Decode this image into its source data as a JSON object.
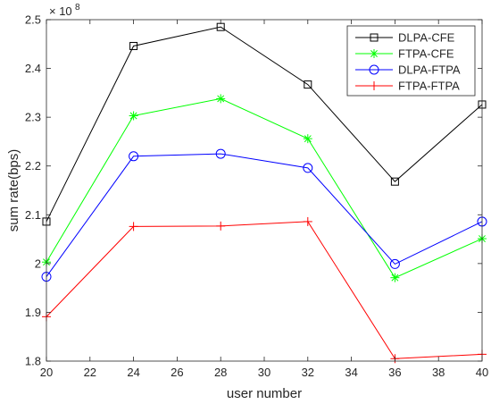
{
  "chart_data": {
    "type": "line",
    "xlabel": "user number",
    "ylabel": "sum rate(bps)",
    "y_multiplier": {
      "base": "× 10",
      "exponent": "8"
    },
    "x": [
      20,
      24,
      28,
      32,
      36,
      40
    ],
    "xlim": [
      20,
      40
    ],
    "ylim": [
      1.8,
      2.5
    ],
    "x_ticks": [
      "20",
      "22",
      "24",
      "26",
      "28",
      "30",
      "32",
      "34",
      "36",
      "38",
      "40"
    ],
    "y_ticks": [
      "1.8",
      "1.9",
      "2",
      "2.1",
      "2.2",
      "2.3",
      "2.4",
      "2.5"
    ],
    "grid": false,
    "legend_position": "top-right",
    "series": [
      {
        "name": "DLPA-CFE",
        "color": "#000000",
        "marker": "square",
        "values": [
          2.086,
          2.446,
          2.485,
          2.367,
          2.168,
          2.326
        ]
      },
      {
        "name": "FTPA-CFE",
        "color": "#00ff00",
        "marker": "asterisk",
        "values": [
          2.003,
          2.303,
          2.338,
          2.256,
          1.971,
          2.051
        ]
      },
      {
        "name": "DLPA-FTPA",
        "color": "#0000ff",
        "marker": "circle",
        "values": [
          1.973,
          2.22,
          2.225,
          2.196,
          1.999,
          2.086
        ]
      },
      {
        "name": "FTPA-FTPA",
        "color": "#ff0000",
        "marker": "plus",
        "values": [
          1.891,
          2.076,
          2.077,
          2.086,
          1.805,
          1.814
        ]
      }
    ]
  }
}
